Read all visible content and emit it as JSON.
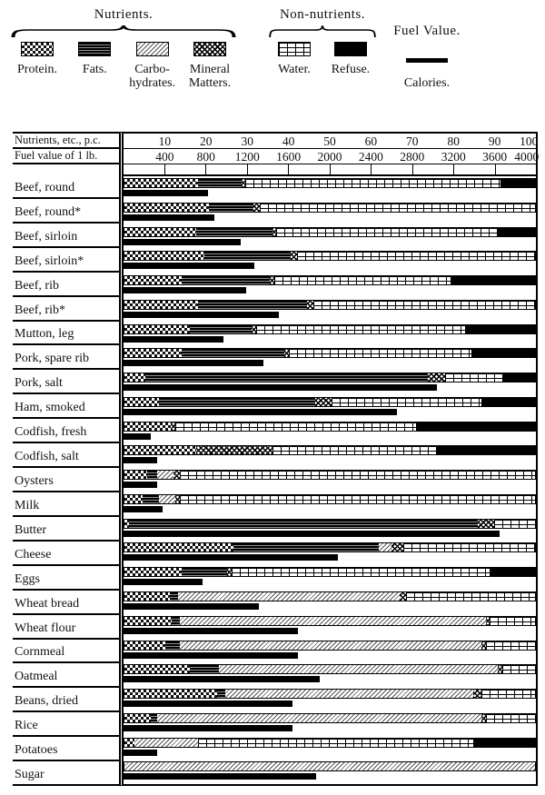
{
  "legend": {
    "nutrients_title": "Nutrients.",
    "non_nutrients_title": "Non-nutrients.",
    "fuel_title": "Fuel Value.",
    "items": [
      {
        "key": "protein",
        "label": "Protein."
      },
      {
        "key": "fats",
        "label": "Fats."
      },
      {
        "key": "carbohydrates",
        "label": "Carbo-\nhydrates."
      },
      {
        "key": "mineral",
        "label": "Mineral\nMatters."
      },
      {
        "key": "water",
        "label": "Water."
      },
      {
        "key": "refuse",
        "label": "Refuse."
      },
      {
        "key": "calories",
        "label": "Calories."
      }
    ]
  },
  "axis": {
    "row1_label": "Nutrients, etc., p.c.",
    "row2_label": "Fuel value of 1 lb.",
    "pc_ticks": [
      10,
      20,
      30,
      40,
      50,
      60,
      70,
      80,
      90,
      100
    ],
    "fuel_ticks": [
      400,
      800,
      1200,
      1600,
      2000,
      2400,
      2800,
      3200,
      3600,
      4000
    ],
    "pc_max": 100,
    "fuel_max": 4000
  },
  "chart_data": {
    "type": "bar",
    "stacked": true,
    "orientation": "horizontal",
    "units": {
      "composition": "percent",
      "calories": "calories per lb"
    },
    "series_keys": [
      "protein",
      "fats",
      "carbohydrates",
      "mineral",
      "water",
      "refuse"
    ],
    "xlim_percent": [
      0,
      100
    ],
    "xlim_fuel": [
      0,
      4000
    ],
    "rows": [
      {
        "label": "Beef, round",
        "protein": 18,
        "fats": 10.5,
        "carbohydrates": 0,
        "mineral": 1,
        "water": 62,
        "refuse": 8.5,
        "calories": 815
      },
      {
        "label": "Beef, round*",
        "protein": 20.5,
        "fats": 11,
        "carbohydrates": 0,
        "mineral": 1.5,
        "water": 67,
        "refuse": 0,
        "calories": 885
      },
      {
        "label": "Beef, sirloin",
        "protein": 17.5,
        "fats": 18.5,
        "carbohydrates": 0,
        "mineral": 1,
        "water": 54,
        "refuse": 9,
        "calories": 1140
      },
      {
        "label": "Beef, sirloin*",
        "protein": 19.5,
        "fats": 21,
        "carbohydrates": 0,
        "mineral": 1.5,
        "water": 58,
        "refuse": 0,
        "calories": 1270
      },
      {
        "label": "Beef, rib",
        "protein": 14,
        "fats": 21.5,
        "carbohydrates": 0,
        "mineral": 1,
        "water": 43,
        "refuse": 20.5,
        "calories": 1190
      },
      {
        "label": "Beef, rib*",
        "protein": 18,
        "fats": 26.5,
        "carbohydrates": 0,
        "mineral": 1.5,
        "water": 54,
        "refuse": 0,
        "calories": 1505
      },
      {
        "label": "Mutton, leg",
        "protein": 16,
        "fats": 15,
        "carbohydrates": 0,
        "mineral": 1,
        "water": 51,
        "refuse": 17,
        "calories": 965
      },
      {
        "label": "Pork, spare rib",
        "protein": 14,
        "fats": 25,
        "carbohydrates": 0,
        "mineral": 1,
        "water": 44.5,
        "refuse": 15.5,
        "calories": 1355
      },
      {
        "label": "Pork, salt",
        "protein": 5,
        "fats": 69,
        "carbohydrates": 0,
        "mineral": 4,
        "water": 14,
        "refuse": 8,
        "calories": 3040
      },
      {
        "label": "Ham, smoked",
        "protein": 8.5,
        "fats": 38,
        "carbohydrates": 0,
        "mineral": 4,
        "water": 36.5,
        "refuse": 13,
        "calories": 2655
      },
      {
        "label": "Codfish, fresh",
        "protein": 11.5,
        "fats": 0,
        "carbohydrates": 0,
        "mineral": 1,
        "water": 58.5,
        "refuse": 29,
        "calories": 265
      },
      {
        "label": "Codfish, salt",
        "protein": 17.5,
        "fats": 0,
        "carbohydrates": 0,
        "mineral": 18.5,
        "water": 40,
        "refuse": 24,
        "calories": 325
      },
      {
        "label": "Oysters",
        "protein": 5.5,
        "fats": 2.5,
        "carbohydrates": 4,
        "mineral": 1.5,
        "water": 86.5,
        "refuse": 0,
        "calories": 330
      },
      {
        "label": "Milk",
        "protein": 4.5,
        "fats": 4,
        "carbohydrates": 4,
        "mineral": 1,
        "water": 86.5,
        "refuse": 0,
        "calories": 375
      },
      {
        "label": "Butter",
        "protein": 1,
        "fats": 85,
        "carbohydrates": 0,
        "mineral": 4,
        "water": 10,
        "refuse": 0,
        "calories": 3650
      },
      {
        "label": "Cheese",
        "protein": 26.5,
        "fats": 35.5,
        "carbohydrates": 3,
        "mineral": 3,
        "water": 32,
        "refuse": 0,
        "calories": 2080
      },
      {
        "label": "Eggs",
        "protein": 14,
        "fats": 11,
        "carbohydrates": 0,
        "mineral": 1,
        "water": 63,
        "refuse": 11,
        "calories": 770
      },
      {
        "label": "Wheat bread",
        "protein": 11,
        "fats": 2,
        "carbohydrates": 54,
        "mineral": 1.5,
        "water": 31.5,
        "refuse": 0,
        "calories": 1310
      },
      {
        "label": "Wheat flour",
        "protein": 11.5,
        "fats": 2,
        "carbohydrates": 74.5,
        "mineral": 1,
        "water": 11,
        "refuse": 0,
        "calories": 1690
      },
      {
        "label": "Cornmeal",
        "protein": 10,
        "fats": 3.5,
        "carbohydrates": 73.5,
        "mineral": 1,
        "water": 12,
        "refuse": 0,
        "calories": 1690
      },
      {
        "label": "Oatmeal",
        "protein": 16,
        "fats": 7,
        "carbohydrates": 68,
        "mineral": 1,
        "water": 8,
        "refuse": 0,
        "calories": 1900
      },
      {
        "label": "Beans, dried",
        "protein": 22.5,
        "fats": 2,
        "carbohydrates": 60.5,
        "mineral": 2,
        "water": 13,
        "refuse": 0,
        "calories": 1635
      },
      {
        "label": "Rice",
        "protein": 6.5,
        "fats": 1.5,
        "carbohydrates": 79,
        "mineral": 1,
        "water": 12,
        "refuse": 0,
        "calories": 1635
      },
      {
        "label": "Potatoes",
        "protein": 2.5,
        "fats": 0,
        "carbohydrates": 15.5,
        "mineral": 0,
        "water": 67,
        "refuse": 15,
        "calories": 330
      },
      {
        "label": "Sugar",
        "protein": 0,
        "fats": 0,
        "carbohydrates": 100,
        "mineral": 0,
        "water": 0,
        "refuse": 0,
        "calories": 1870
      }
    ]
  }
}
